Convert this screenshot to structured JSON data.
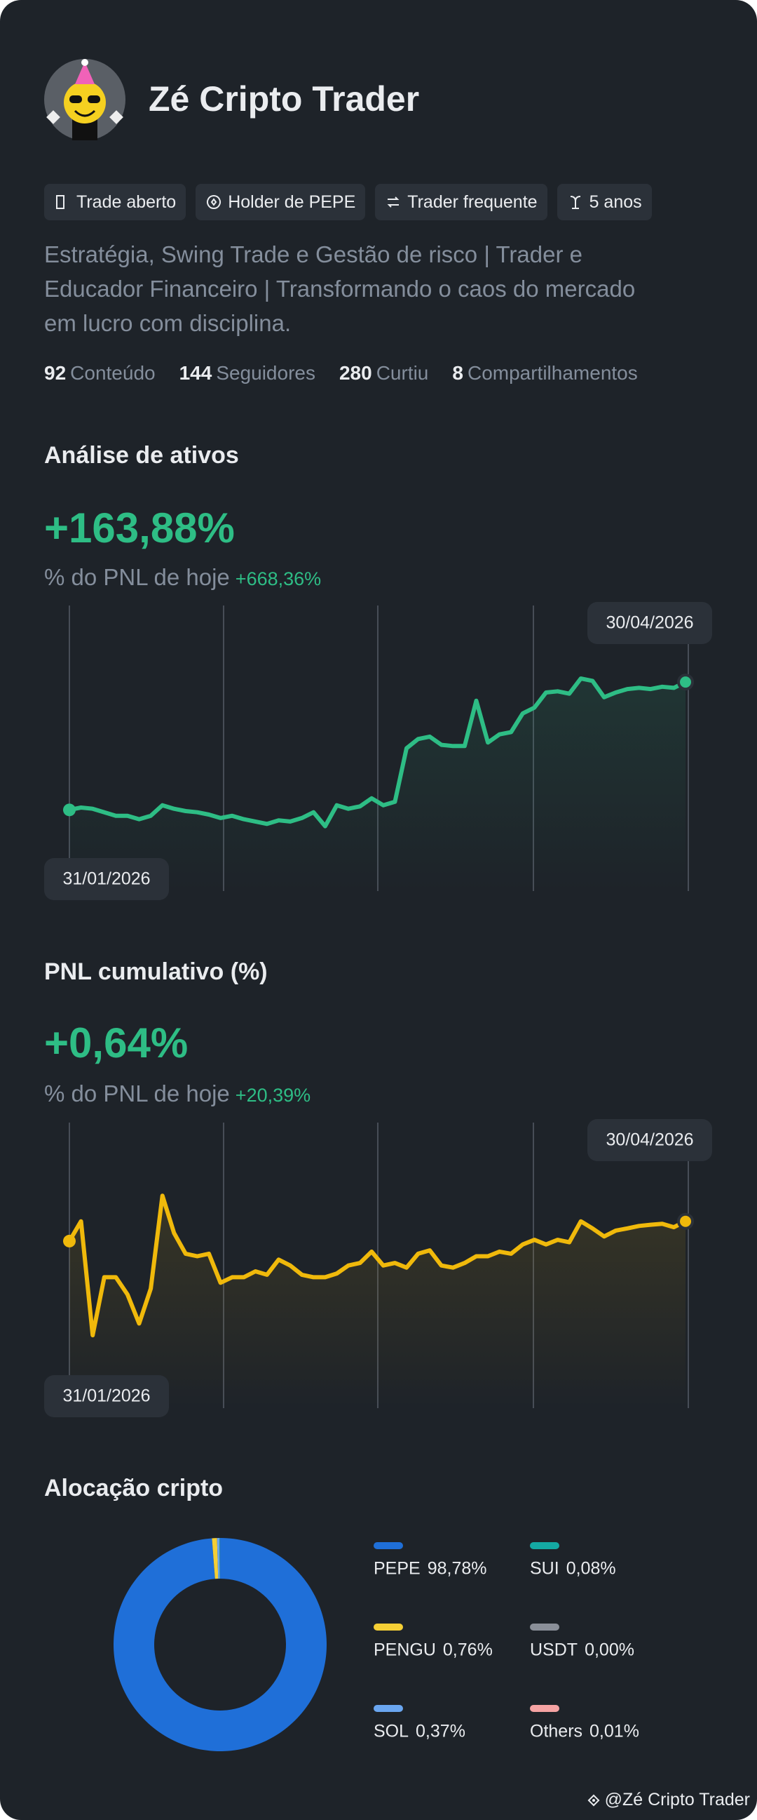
{
  "profile": {
    "name": "Zé Cripto Trader",
    "badges": [
      "Trade aberto",
      "Holder de PEPE",
      "Trader frequente",
      "5 anos"
    ],
    "bio": [
      "Estratégia, Swing Trade e Gestão de risco | Trader e",
      "Educador Financeiro | Transformando o caos do mercado",
      "em lucro com disciplina."
    ],
    "stats": [
      {
        "value": 92,
        "label": "Conteúdo"
      },
      {
        "value": 144,
        "label": "Seguidores"
      },
      {
        "value": 280,
        "label": "Curtiu"
      },
      {
        "value": 8,
        "label": "Compartilhamentos"
      }
    ]
  },
  "chart_data": [
    {
      "type": "line",
      "title": "Análise de ativos",
      "headline": "+163,88%",
      "subtitle": "% do PNL de hoje",
      "change": "+668,36%",
      "start_label": "31/01/2026",
      "end_label": "30/04/2026",
      "color": "#2ebd85",
      "ylim": [
        -104,
        253
      ],
      "values": [
        0,
        3.0,
        1.5,
        -3.0,
        -7.5,
        -7.5,
        -11.9,
        -7.5,
        6.0,
        1.5,
        -1.5,
        -3.0,
        -6.0,
        -10.4,
        -7.5,
        -11.9,
        -14.9,
        -17.9,
        -13.4,
        -14.9,
        -10.4,
        -3.0,
        -20.9,
        6.0,
        1.5,
        4.5,
        14.9,
        6.0,
        10.4,
        79.0,
        90.9,
        93.9,
        83.4,
        81.9,
        81.9,
        140.0,
        86.4,
        96.8,
        99.8,
        123.7,
        131.1,
        150.5,
        152.0,
        149.0,
        168.4,
        165.4,
        144.5,
        150.5,
        154.9,
        156.4,
        154.9,
        157.9,
        156.4,
        163.88
      ]
    },
    {
      "type": "line",
      "title": "PNL cumulativo (%)",
      "headline": "+0,64%",
      "subtitle": "% do PNL de hoje",
      "change": "+20,39%",
      "start_label": "31/01/2026",
      "end_label": "30/04/2026",
      "color": "#f0b90b",
      "ylim": [
        -5.41,
        3.61
      ],
      "values": [
        0,
        0.64,
        -3.05,
        -1.17,
        -1.17,
        -1.73,
        -2.67,
        -1.54,
        1.47,
        0.26,
        -0.41,
        -0.49,
        -0.41,
        -1.35,
        -1.17,
        -1.17,
        -0.98,
        -1.09,
        -0.6,
        -0.79,
        -1.09,
        -1.17,
        -1.17,
        -1.05,
        -0.79,
        -0.71,
        -0.34,
        -0.79,
        -0.71,
        -0.86,
        -0.41,
        -0.3,
        -0.79,
        -0.86,
        -0.71,
        -0.49,
        -0.49,
        -0.34,
        -0.41,
        -0.11,
        0.04,
        -0.11,
        0.04,
        -0.04,
        0.64,
        0.41,
        0.15,
        0.34,
        0.41,
        0.49,
        0.53,
        0.56,
        0.45,
        0.64
      ]
    },
    {
      "type": "donut",
      "title": "Alocação cripto",
      "categories": [
        "PEPE",
        "PENGU",
        "SOL",
        "SUI",
        "USDT",
        "Others"
      ],
      "values": [
        98.78,
        0.76,
        0.37,
        0.08,
        0.0,
        0.01
      ],
      "value_labels": [
        "98,78%",
        "0,76%",
        "0,37%",
        "0,08%",
        "0,00%",
        "0,01%"
      ],
      "colors": [
        "#1f6fd8",
        "#f5cf35",
        "#6aa6f0",
        "#14a9a3",
        "#8a8f98",
        "#f5a3a3"
      ]
    }
  ],
  "footer": "@Zé Cripto Trader"
}
